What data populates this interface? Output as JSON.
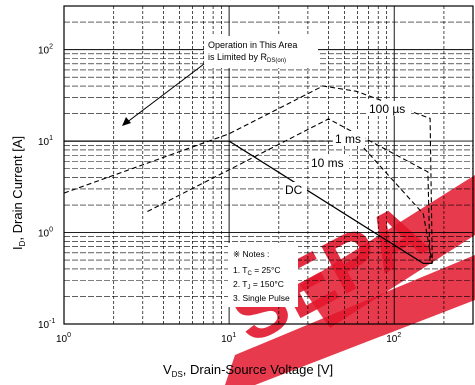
{
  "watermark": {
    "text": "SEPA",
    "color": "#e3172d"
  },
  "chart_data": {
    "type": "line",
    "scale": "log-log",
    "xlabel": {
      "main": "V",
      "sub": "DS",
      "rest": ", Drain-Source Voltage [V]"
    },
    "ylabel": {
      "main": "I",
      "sub": "D",
      "rest": ", Drain Current [A]"
    },
    "xlim": [
      1,
      300
    ],
    "ylim": [
      0.1,
      300
    ],
    "xticks": [
      {
        "value": 1,
        "base": "10",
        "exp": "0"
      },
      {
        "value": 10,
        "base": "10",
        "exp": "1"
      },
      {
        "value": 100,
        "base": "10",
        "exp": "2"
      }
    ],
    "yticks": [
      {
        "value": 0.1,
        "base": "10",
        "exp": "-1"
      },
      {
        "value": 1,
        "base": "10",
        "exp": "0"
      },
      {
        "value": 10,
        "base": "10",
        "exp": "1"
      },
      {
        "value": 100,
        "base": "10",
        "exp": "2"
      }
    ],
    "grid": true,
    "series": [
      {
        "name": "100 µs",
        "style": "dashed",
        "x": [
          1,
          10,
          27,
          37,
          59,
          165,
          170
        ],
        "y": [
          2.7,
          12,
          30,
          40,
          35,
          17.7,
          0.46
        ]
      },
      {
        "name": "1 ms",
        "style": "dashed",
        "x": [
          3.2,
          20,
          40,
          160,
          165
        ],
        "y": [
          1.7,
          9.2,
          17.5,
          4.6,
          0.46
        ]
      },
      {
        "name": "10 ms",
        "style": "dashed",
        "x": [
          28,
          60,
          150,
          170
        ],
        "y": [
          10,
          10,
          1.6,
          0.46
        ]
      },
      {
        "name": "DC",
        "style": "solid",
        "x": [
          1,
          10,
          150,
          170
        ],
        "y": [
          10,
          10,
          0.46,
          0.46
        ]
      }
    ],
    "annotations": {
      "rds_line1": "Operation in This Area",
      "rds_line2_prefix": "is Limited by R",
      "rds_line2_sub": "DS(on)",
      "mu_label": "100 µs",
      "ms_label": "1 ms",
      "ms10_label": "10 ms",
      "dc_label": "DC"
    },
    "notes": {
      "title": "※ Notes :",
      "n1_prefix": "1. T",
      "n1_sub": "C",
      "n1_value": " = 25°C",
      "n2_prefix": "2. T",
      "n2_sub": "J",
      "n2_value": " = 150°C",
      "n3": "3. Single Pulse"
    }
  }
}
